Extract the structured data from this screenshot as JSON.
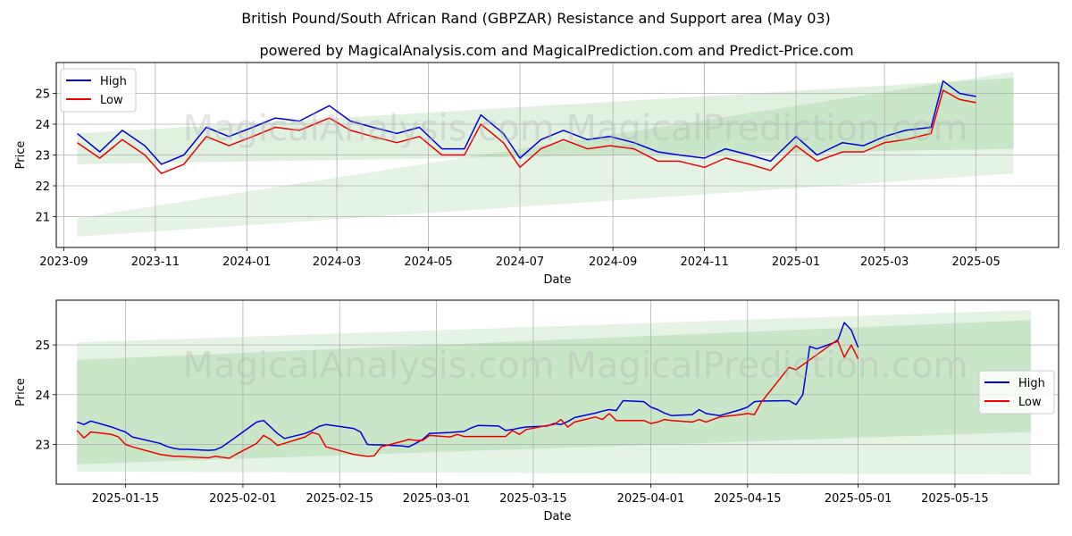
{
  "title": "British Pound/South African Rand (GBPZAR) Resistance and Support area (May 03)",
  "subtitle": "powered by MagicalAnalysis.com and MagicalPrediction.com and Predict-Price.com",
  "watermark": "MagicalAnalysis.com   MagicalPrediction.com",
  "colors": {
    "high": "#0000dd",
    "low": "#ee0000",
    "band": "#2ca02c",
    "grid": "#b0b0b0"
  },
  "chart_data": [
    {
      "type": "line",
      "panel": "top",
      "xlabel": "Date",
      "ylabel": "Price",
      "xlim": [
        "2023-08-27",
        "2025-06-25"
      ],
      "ylim": [
        20.0,
        26.0
      ],
      "x_ticks": [
        "2023-09",
        "2023-11",
        "2024-01",
        "2024-03",
        "2024-05",
        "2024-07",
        "2024-09",
        "2024-11",
        "2025-01",
        "2025-03",
        "2025-05"
      ],
      "x_tick_dates": [
        "2023-09-01",
        "2023-11-01",
        "2024-01-01",
        "2024-03-01",
        "2024-05-01",
        "2024-07-01",
        "2024-09-01",
        "2024-11-01",
        "2025-01-01",
        "2025-03-01",
        "2025-05-01"
      ],
      "y_ticks": [
        21,
        22,
        23,
        24,
        25
      ],
      "grid": true,
      "legend": "top-left",
      "bands": [
        {
          "x": [
            "2023-09-10",
            "2025-05-26"
          ],
          "lower": [
            22.7,
            23.2
          ],
          "upper": [
            23.7,
            25.5
          ]
        },
        {
          "x": [
            "2023-09-10",
            "2025-05-26"
          ],
          "lower": [
            20.35,
            22.4
          ],
          "upper": [
            20.95,
            25.7
          ]
        }
      ],
      "series": [
        {
          "name": "High",
          "x": [
            "2023-09-10",
            "2023-09-25",
            "2023-10-10",
            "2023-10-25",
            "2023-11-05",
            "2023-11-20",
            "2023-12-05",
            "2023-12-20",
            "2024-01-05",
            "2024-01-20",
            "2024-02-05",
            "2024-02-25",
            "2024-03-10",
            "2024-03-25",
            "2024-04-10",
            "2024-04-25",
            "2024-05-10",
            "2024-05-25",
            "2024-06-05",
            "2024-06-20",
            "2024-07-01",
            "2024-07-15",
            "2024-07-30",
            "2024-08-15",
            "2024-08-30",
            "2024-09-15",
            "2024-10-01",
            "2024-10-15",
            "2024-11-01",
            "2024-11-15",
            "2024-12-01",
            "2024-12-15",
            "2025-01-01",
            "2025-01-15",
            "2025-02-01",
            "2025-02-15",
            "2025-03-01",
            "2025-03-15",
            "2025-04-01",
            "2025-04-09",
            "2025-04-20",
            "2025-05-01"
          ],
          "values": [
            23.7,
            23.1,
            23.8,
            23.3,
            22.7,
            23.0,
            23.9,
            23.6,
            23.9,
            24.2,
            24.1,
            24.6,
            24.1,
            23.9,
            23.7,
            23.9,
            23.2,
            23.2,
            24.3,
            23.7,
            22.9,
            23.5,
            23.8,
            23.5,
            23.6,
            23.4,
            23.1,
            23.0,
            22.9,
            23.2,
            23.0,
            22.8,
            23.6,
            23.0,
            23.4,
            23.3,
            23.6,
            23.8,
            23.9,
            25.4,
            25.0,
            24.9
          ]
        },
        {
          "name": "Low",
          "x": [
            "2023-09-10",
            "2023-09-25",
            "2023-10-10",
            "2023-10-25",
            "2023-11-05",
            "2023-11-20",
            "2023-12-05",
            "2023-12-20",
            "2024-01-05",
            "2024-01-20",
            "2024-02-05",
            "2024-02-25",
            "2024-03-10",
            "2024-03-25",
            "2024-04-10",
            "2024-04-25",
            "2024-05-10",
            "2024-05-25",
            "2024-06-05",
            "2024-06-20",
            "2024-07-01",
            "2024-07-15",
            "2024-07-30",
            "2024-08-15",
            "2024-08-30",
            "2024-09-15",
            "2024-10-01",
            "2024-10-15",
            "2024-11-01",
            "2024-11-15",
            "2024-12-01",
            "2024-12-15",
            "2025-01-01",
            "2025-01-15",
            "2025-02-01",
            "2025-02-15",
            "2025-03-01",
            "2025-03-15",
            "2025-04-01",
            "2025-04-09",
            "2025-04-20",
            "2025-05-01"
          ],
          "values": [
            23.4,
            22.9,
            23.5,
            23.0,
            22.4,
            22.7,
            23.6,
            23.3,
            23.6,
            23.9,
            23.8,
            24.2,
            23.8,
            23.6,
            23.4,
            23.6,
            23.0,
            23.0,
            24.0,
            23.4,
            22.6,
            23.2,
            23.5,
            23.2,
            23.3,
            23.2,
            22.8,
            22.8,
            22.6,
            22.9,
            22.7,
            22.5,
            23.3,
            22.8,
            23.1,
            23.1,
            23.4,
            23.5,
            23.7,
            25.1,
            24.8,
            24.7
          ]
        }
      ]
    },
    {
      "type": "line",
      "panel": "bottom",
      "xlabel": "Date",
      "ylabel": "Price",
      "xlim": [
        "2025-01-05",
        "2025-05-30"
      ],
      "ylim": [
        22.2,
        25.9
      ],
      "x_ticks": [
        "2025-01-15",
        "2025-02-01",
        "2025-02-15",
        "2025-03-01",
        "2025-03-15",
        "2025-04-01",
        "2025-04-15",
        "2025-05-01",
        "2025-05-15"
      ],
      "y_ticks": [
        23,
        24,
        25
      ],
      "grid": true,
      "legend": "center-right",
      "bands": [
        {
          "x": [
            "2025-01-08",
            "2025-05-26"
          ],
          "lower": [
            22.6,
            23.25
          ],
          "upper": [
            24.7,
            25.5
          ]
        },
        {
          "x": [
            "2025-01-08",
            "2025-05-26"
          ],
          "lower": [
            22.45,
            22.4
          ],
          "upper": [
            25.05,
            25.7
          ]
        }
      ],
      "series": [
        {
          "name": "High",
          "x": [
            "2025-01-08",
            "2025-01-09",
            "2025-01-10",
            "2025-01-13",
            "2025-01-14",
            "2025-01-15",
            "2025-01-16",
            "2025-01-20",
            "2025-01-21",
            "2025-01-22",
            "2025-01-23",
            "2025-01-24",
            "2025-01-27",
            "2025-01-28",
            "2025-01-29",
            "2025-01-30",
            "2025-01-31",
            "2025-02-03",
            "2025-02-04",
            "2025-02-05",
            "2025-02-06",
            "2025-02-07",
            "2025-02-10",
            "2025-02-11",
            "2025-02-12",
            "2025-02-13",
            "2025-02-17",
            "2025-02-18",
            "2025-02-19",
            "2025-02-20",
            "2025-02-21",
            "2025-02-24",
            "2025-02-25",
            "2025-02-26",
            "2025-02-27",
            "2025-02-28",
            "2025-03-03",
            "2025-03-04",
            "2025-03-05",
            "2025-03-06",
            "2025-03-07",
            "2025-03-10",
            "2025-03-11",
            "2025-03-12",
            "2025-03-13",
            "2025-03-14",
            "2025-03-17",
            "2025-03-18",
            "2025-03-19",
            "2025-03-20",
            "2025-03-21",
            "2025-03-24",
            "2025-03-25",
            "2025-03-26",
            "2025-03-27",
            "2025-03-28",
            "2025-03-31",
            "2025-04-01",
            "2025-04-02",
            "2025-04-03",
            "2025-04-04",
            "2025-04-07",
            "2025-04-08",
            "2025-04-09",
            "2025-04-10",
            "2025-04-11",
            "2025-04-14",
            "2025-04-15",
            "2025-04-16",
            "2025-04-17",
            "2025-04-21",
            "2025-04-22",
            "2025-04-23",
            "2025-04-24",
            "2025-04-25",
            "2025-04-28",
            "2025-04-29",
            "2025-04-30",
            "2025-05-01"
          ],
          "values": [
            23.45,
            23.4,
            23.47,
            23.35,
            23.3,
            23.25,
            23.15,
            23.02,
            22.96,
            22.92,
            22.9,
            22.9,
            22.88,
            22.89,
            22.95,
            23.05,
            23.15,
            23.45,
            23.48,
            23.35,
            23.22,
            23.12,
            23.22,
            23.28,
            23.36,
            23.4,
            23.32,
            23.25,
            23.0,
            22.99,
            22.99,
            22.97,
            22.95,
            23.02,
            23.1,
            23.22,
            23.24,
            23.25,
            23.26,
            23.33,
            23.38,
            23.37,
            23.28,
            23.3,
            23.33,
            23.35,
            23.37,
            23.42,
            23.4,
            23.46,
            23.54,
            23.63,
            23.67,
            23.7,
            23.68,
            23.88,
            23.86,
            23.75,
            23.7,
            23.63,
            23.58,
            23.6,
            23.7,
            23.62,
            23.6,
            23.58,
            23.7,
            23.75,
            23.86,
            23.87,
            23.88,
            23.8,
            24.0,
            24.97,
            24.92,
            25.07,
            25.45,
            25.3,
            24.95
          ]
        },
        {
          "name": "Low",
          "x": [
            "2025-01-08",
            "2025-01-09",
            "2025-01-10",
            "2025-01-13",
            "2025-01-14",
            "2025-01-15",
            "2025-01-16",
            "2025-01-20",
            "2025-01-21",
            "2025-01-22",
            "2025-01-23",
            "2025-01-24",
            "2025-01-27",
            "2025-01-28",
            "2025-01-29",
            "2025-01-30",
            "2025-01-31",
            "2025-02-03",
            "2025-02-04",
            "2025-02-05",
            "2025-02-06",
            "2025-02-07",
            "2025-02-10",
            "2025-02-11",
            "2025-02-12",
            "2025-02-13",
            "2025-02-17",
            "2025-02-18",
            "2025-02-19",
            "2025-02-20",
            "2025-02-21",
            "2025-02-24",
            "2025-02-25",
            "2025-02-26",
            "2025-02-27",
            "2025-02-28",
            "2025-03-03",
            "2025-03-04",
            "2025-03-05",
            "2025-03-06",
            "2025-03-07",
            "2025-03-10",
            "2025-03-11",
            "2025-03-12",
            "2025-03-13",
            "2025-03-14",
            "2025-03-17",
            "2025-03-18",
            "2025-03-19",
            "2025-03-20",
            "2025-03-21",
            "2025-03-24",
            "2025-03-25",
            "2025-03-26",
            "2025-03-27",
            "2025-03-28",
            "2025-03-31",
            "2025-04-01",
            "2025-04-02",
            "2025-04-03",
            "2025-04-04",
            "2025-04-07",
            "2025-04-08",
            "2025-04-09",
            "2025-04-10",
            "2025-04-11",
            "2025-04-14",
            "2025-04-15",
            "2025-04-16",
            "2025-04-17",
            "2025-04-21",
            "2025-04-22",
            "2025-04-23",
            "2025-04-24",
            "2025-04-25",
            "2025-04-28",
            "2025-04-29",
            "2025-04-30",
            "2025-05-01"
          ],
          "values": [
            23.28,
            23.13,
            23.25,
            23.2,
            23.15,
            23.0,
            22.95,
            22.8,
            22.78,
            22.76,
            22.76,
            22.75,
            22.73,
            22.76,
            22.74,
            22.72,
            22.8,
            23.02,
            23.18,
            23.1,
            22.98,
            23.02,
            23.15,
            23.24,
            23.2,
            22.95,
            22.8,
            22.78,
            22.76,
            22.77,
            22.95,
            23.06,
            23.1,
            23.08,
            23.08,
            23.18,
            23.15,
            23.2,
            23.16,
            23.16,
            23.16,
            23.16,
            23.16,
            23.28,
            23.2,
            23.3,
            23.38,
            23.4,
            23.5,
            23.35,
            23.45,
            23.55,
            23.5,
            23.62,
            23.48,
            23.48,
            23.48,
            23.42,
            23.45,
            23.5,
            23.48,
            23.45,
            23.5,
            23.45,
            23.5,
            23.55,
            23.6,
            23.62,
            23.6,
            23.85,
            24.55,
            24.5,
            24.6,
            24.7,
            24.8,
            25.1,
            24.75,
            25.0,
            24.72
          ]
        }
      ]
    }
  ]
}
